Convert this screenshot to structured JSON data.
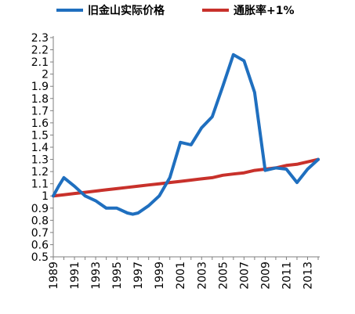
{
  "chart_data": {
    "type": "line",
    "title": "",
    "xlabel": "",
    "ylabel": "",
    "ylim": [
      0.5,
      2.3
    ],
    "ytick_step": 0.1,
    "yticks": [
      "0.5",
      "0.6",
      "0.7",
      "0.8",
      "0.9",
      "1",
      "1.1",
      "1.2",
      "1.3",
      "1.4",
      "1.5",
      "1.6",
      "1.7",
      "1.8",
      "1.9",
      "2",
      "2.1",
      "2.2",
      "2.3"
    ],
    "xlim": [
      1989,
      2014
    ],
    "xticks": [
      "1989",
      "1991",
      "1993",
      "1995",
      "1997",
      "1999",
      "2001",
      "2003",
      "2005",
      "2007",
      "2009",
      "2011",
      "2013"
    ],
    "grid": false,
    "legend_position": "top",
    "series": [
      {
        "name": "旧金山实际价格",
        "color": "#1f6fbf",
        "x": [
          1989,
          1989.5,
          1990,
          1991,
          1992,
          1993,
          1994,
          1995,
          1996,
          1996.5,
          1997,
          1998,
          1999,
          2000,
          2001,
          2002,
          2003,
          2004,
          2005,
          2006,
          2007,
          2008,
          2009,
          2010,
          2011,
          2012,
          2013,
          2014
        ],
        "y": [
          1.0,
          1.08,
          1.15,
          1.08,
          1.0,
          0.96,
          0.9,
          0.9,
          0.86,
          0.85,
          0.86,
          0.92,
          1.0,
          1.15,
          1.44,
          1.42,
          1.56,
          1.65,
          1.9,
          2.16,
          2.11,
          1.85,
          1.21,
          1.23,
          1.22,
          1.11,
          1.22,
          1.3
        ]
      },
      {
        "name": "通胀率+1%",
        "color": "#c8312b",
        "x": [
          1989,
          1990,
          1991,
          1992,
          1993,
          1994,
          1995,
          1996,
          1997,
          1998,
          1999,
          2000,
          2001,
          2002,
          2003,
          2004,
          2005,
          2006,
          2007,
          2008,
          2009,
          2010,
          2011,
          2012,
          2013,
          2014
        ],
        "y": [
          1.0,
          1.01,
          1.02,
          1.03,
          1.04,
          1.05,
          1.06,
          1.07,
          1.08,
          1.09,
          1.1,
          1.11,
          1.12,
          1.13,
          1.14,
          1.15,
          1.17,
          1.18,
          1.19,
          1.21,
          1.22,
          1.23,
          1.25,
          1.26,
          1.28,
          1.3
        ]
      }
    ]
  }
}
